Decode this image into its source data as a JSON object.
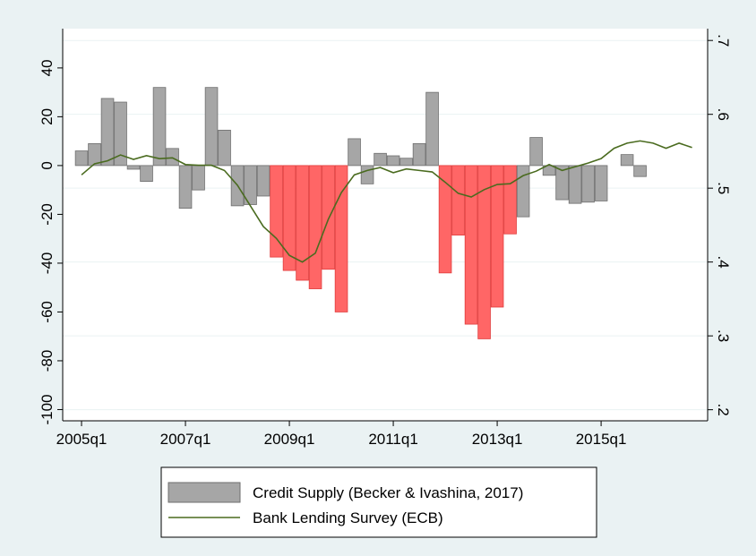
{
  "chart_data": {
    "type": "bar_line",
    "x": [
      180,
      181,
      182,
      183,
      184,
      185,
      186,
      187,
      188,
      189,
      190,
      191,
      192,
      193,
      194,
      195,
      196,
      197,
      198,
      199,
      200,
      201,
      202,
      203,
      204,
      205,
      206,
      207,
      208,
      209,
      210,
      211,
      212,
      213,
      214,
      215,
      216,
      217,
      218,
      219,
      220,
      221,
      222,
      223,
      224,
      225,
      226,
      227
    ],
    "xlim": [
      178.55,
      228.2
    ],
    "xticks": [
      {
        "value": 180,
        "label": "2005q1"
      },
      {
        "value": 188,
        "label": "2007q1"
      },
      {
        "value": 196,
        "label": "2009q1"
      },
      {
        "value": 204,
        "label": "2011q1"
      },
      {
        "value": 212,
        "label": "2013q1"
      },
      {
        "value": 220,
        "label": "2015q1"
      }
    ],
    "ylim": [
      -104.6,
      56.1
    ],
    "yticks": [
      -100,
      -80,
      -60,
      -40,
      -20,
      0,
      20,
      40
    ],
    "y2lim": [
      0.185,
      0.716
    ],
    "y2ticks": [
      {
        "value": 0.2,
        "label": ".2"
      },
      {
        "value": 0.3,
        "label": ".3"
      },
      {
        "value": 0.4,
        "label": ".4"
      },
      {
        "value": 0.5,
        "label": ".5"
      },
      {
        "value": 0.6,
        "label": ".6"
      },
      {
        "value": 0.7,
        "label": ".7"
      }
    ],
    "grid": true,
    "series": [
      {
        "name": "Credit Supply (Becker & Ivashina, 2017)",
        "type": "bar",
        "color": "#a6a6a6",
        "colors": [
          "#a6a6a6",
          "#a6a6a6",
          "#a6a6a6",
          "#a6a6a6",
          "#a6a6a6",
          "#a6a6a6",
          "#a6a6a6",
          "#a6a6a6",
          "#a6a6a6",
          "#a6a6a6",
          "#a6a6a6",
          "#a6a6a6",
          "#a6a6a6",
          "#a6a6a6",
          "#a6a6a6",
          "#ff6666",
          "#ff6666",
          "#ff6666",
          "#ff6666",
          "#ff6666",
          "#ff6666",
          "#a6a6a6",
          "#a6a6a6",
          "#a6a6a6",
          "#a6a6a6",
          "#a6a6a6",
          "#a6a6a6",
          "#a6a6a6",
          "#ff6666",
          "#ff6666",
          "#ff6666",
          "#ff6666",
          "#ff6666",
          "#ff6666",
          "#a6a6a6",
          "#a6a6a6",
          "#a6a6a6",
          "#a6a6a6",
          "#a6a6a6",
          "#a6a6a6",
          "#a6a6a6",
          "#a6a6a6",
          "#a6a6a6",
          "#a6a6a6",
          null,
          null,
          null,
          null
        ],
        "values": [
          6,
          9,
          27.5,
          26,
          -1.5,
          -6.5,
          32,
          7,
          -17.5,
          -10,
          32,
          14.5,
          -16.5,
          -16,
          -12.5,
          -37.5,
          -43,
          -47,
          -50.5,
          -42.5,
          -60,
          11,
          -7.5,
          5,
          4,
          3,
          9,
          30,
          -44,
          -28.5,
          -65,
          -71,
          -58,
          -28,
          -21,
          11.5,
          -4,
          -14,
          -15.5,
          -15,
          -14.5,
          0,
          4.5,
          -4.5,
          null,
          null,
          null,
          null
        ]
      },
      {
        "name": "Bank Lending Survey (ECB)",
        "type": "line",
        "axis": "y2",
        "color": "#4a6b1f",
        "values": [
          0.518,
          0.533,
          0.537,
          0.545,
          0.539,
          0.544,
          0.54,
          0.541,
          0.532,
          0.531,
          0.531,
          0.524,
          0.504,
          0.476,
          0.448,
          0.432,
          0.409,
          0.4,
          0.412,
          0.458,
          0.494,
          0.518,
          0.524,
          0.528,
          0.521,
          0.526,
          0.524,
          0.522,
          0.508,
          0.493,
          0.488,
          0.498,
          0.505,
          0.506,
          0.517,
          0.523,
          0.532,
          0.524,
          0.529,
          0.534,
          0.54,
          0.554,
          0.561,
          0.564,
          0.561,
          0.554,
          0.561,
          0.555
        ]
      }
    ]
  }
}
